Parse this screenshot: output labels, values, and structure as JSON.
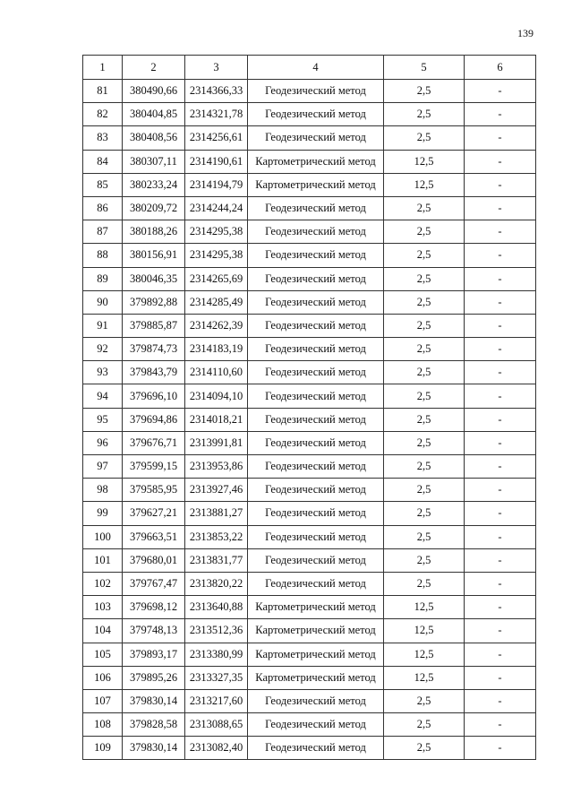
{
  "page_number": "139",
  "table": {
    "headers": [
      "1",
      "2",
      "3",
      "4",
      "5",
      "6"
    ],
    "rows": [
      [
        "81",
        "380490,66",
        "2314366,33",
        "Геодезический метод",
        "2,5",
        "-"
      ],
      [
        "82",
        "380404,85",
        "2314321,78",
        "Геодезический метод",
        "2,5",
        "-"
      ],
      [
        "83",
        "380408,56",
        "2314256,61",
        "Геодезический метод",
        "2,5",
        "-"
      ],
      [
        "84",
        "380307,11",
        "2314190,61",
        "Картометрический метод",
        "12,5",
        "-"
      ],
      [
        "85",
        "380233,24",
        "2314194,79",
        "Картометрический метод",
        "12,5",
        "-"
      ],
      [
        "86",
        "380209,72",
        "2314244,24",
        "Геодезический метод",
        "2,5",
        "-"
      ],
      [
        "87",
        "380188,26",
        "2314295,38",
        "Геодезический метод",
        "2,5",
        "-"
      ],
      [
        "88",
        "380156,91",
        "2314295,38",
        "Геодезический метод",
        "2,5",
        "-"
      ],
      [
        "89",
        "380046,35",
        "2314265,69",
        "Геодезический метод",
        "2,5",
        "-"
      ],
      [
        "90",
        "379892,88",
        "2314285,49",
        "Геодезический метод",
        "2,5",
        "-"
      ],
      [
        "91",
        "379885,87",
        "2314262,39",
        "Геодезический метод",
        "2,5",
        "-"
      ],
      [
        "92",
        "379874,73",
        "2314183,19",
        "Геодезический метод",
        "2,5",
        "-"
      ],
      [
        "93",
        "379843,79",
        "2314110,60",
        "Геодезический метод",
        "2,5",
        "-"
      ],
      [
        "94",
        "379696,10",
        "2314094,10",
        "Геодезический метод",
        "2,5",
        "-"
      ],
      [
        "95",
        "379694,86",
        "2314018,21",
        "Геодезический метод",
        "2,5",
        "-"
      ],
      [
        "96",
        "379676,71",
        "2313991,81",
        "Геодезический метод",
        "2,5",
        "-"
      ],
      [
        "97",
        "379599,15",
        "2313953,86",
        "Геодезический метод",
        "2,5",
        "-"
      ],
      [
        "98",
        "379585,95",
        "2313927,46",
        "Геодезический метод",
        "2,5",
        "-"
      ],
      [
        "99",
        "379627,21",
        "2313881,27",
        "Геодезический метод",
        "2,5",
        "-"
      ],
      [
        "100",
        "379663,51",
        "2313853,22",
        "Геодезический метод",
        "2,5",
        "-"
      ],
      [
        "101",
        "379680,01",
        "2313831,77",
        "Геодезический метод",
        "2,5",
        "-"
      ],
      [
        "102",
        "379767,47",
        "2313820,22",
        "Геодезический метод",
        "2,5",
        "-"
      ],
      [
        "103",
        "379698,12",
        "2313640,88",
        "Картометрический метод",
        "12,5",
        "-"
      ],
      [
        "104",
        "379748,13",
        "2313512,36",
        "Картометрический метод",
        "12,5",
        "-"
      ],
      [
        "105",
        "379893,17",
        "2313380,99",
        "Картометрический метод",
        "12,5",
        "-"
      ],
      [
        "106",
        "379895,26",
        "2313327,35",
        "Картометрический метод",
        "12,5",
        "-"
      ],
      [
        "107",
        "379830,14",
        "2313217,60",
        "Геодезический метод",
        "2,5",
        "-"
      ],
      [
        "108",
        "379828,58",
        "2313088,65",
        "Геодезический метод",
        "2,5",
        "-"
      ],
      [
        "109",
        "379830,14",
        "2313082,40",
        "Геодезический метод",
        "2,5",
        "-"
      ]
    ]
  }
}
